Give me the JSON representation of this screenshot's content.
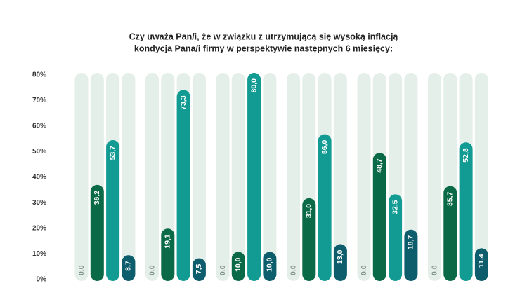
{
  "chart_data": {
    "type": "bar",
    "title": [
      "Czy uważa Pan/i, że w związku z utrzymującą się wysoką inflacją",
      "kondycja Pana/i firmy w perspektywie następnych 6 miesięcy:"
    ],
    "categories": [
      null,
      null,
      null,
      null,
      null,
      null
    ],
    "series": [
      {
        "color": "#e4efea",
        "values": [
          0.0,
          0.0,
          0.0,
          0.0,
          0.0,
          0.0
        ],
        "value_labels": [
          "0,0",
          "0,0",
          "0,0",
          "0,0",
          "0,0",
          "0,0"
        ]
      },
      {
        "color": "#0a6a48",
        "values": [
          36.2,
          19.1,
          10.0,
          31.0,
          48.7,
          35.7
        ],
        "value_labels": [
          "36,2",
          "19,1",
          "10,0",
          "31,0",
          "48,7",
          "35,7"
        ]
      },
      {
        "color": "#129b93",
        "values": [
          53.7,
          73.3,
          80.0,
          56.0,
          32.5,
          52.8
        ],
        "value_labels": [
          "53,7",
          "73,3",
          "80,0",
          "56,0",
          "32,5",
          "52,8"
        ]
      },
      {
        "color": "#0d5d6c",
        "values": [
          8.7,
          7.5,
          10.0,
          13.0,
          18.7,
          11.4
        ],
        "value_labels": [
          "8,7",
          "7,5",
          "10,0",
          "13,0",
          "18,7",
          "11,4"
        ]
      }
    ],
    "ylim": [
      0,
      80
    ],
    "yticks": [
      {
        "value": 0,
        "label": "0%"
      },
      {
        "value": 10,
        "label": "10%"
      },
      {
        "value": 20,
        "label": "20%"
      },
      {
        "value": 30,
        "label": "30%"
      },
      {
        "value": 40,
        "label": "40%"
      },
      {
        "value": 50,
        "label": "50%"
      },
      {
        "value": 60,
        "label": "60%"
      },
      {
        "value": 70,
        "label": "70%"
      },
      {
        "value": 80,
        "label": "80%"
      }
    ],
    "grid": false
  }
}
